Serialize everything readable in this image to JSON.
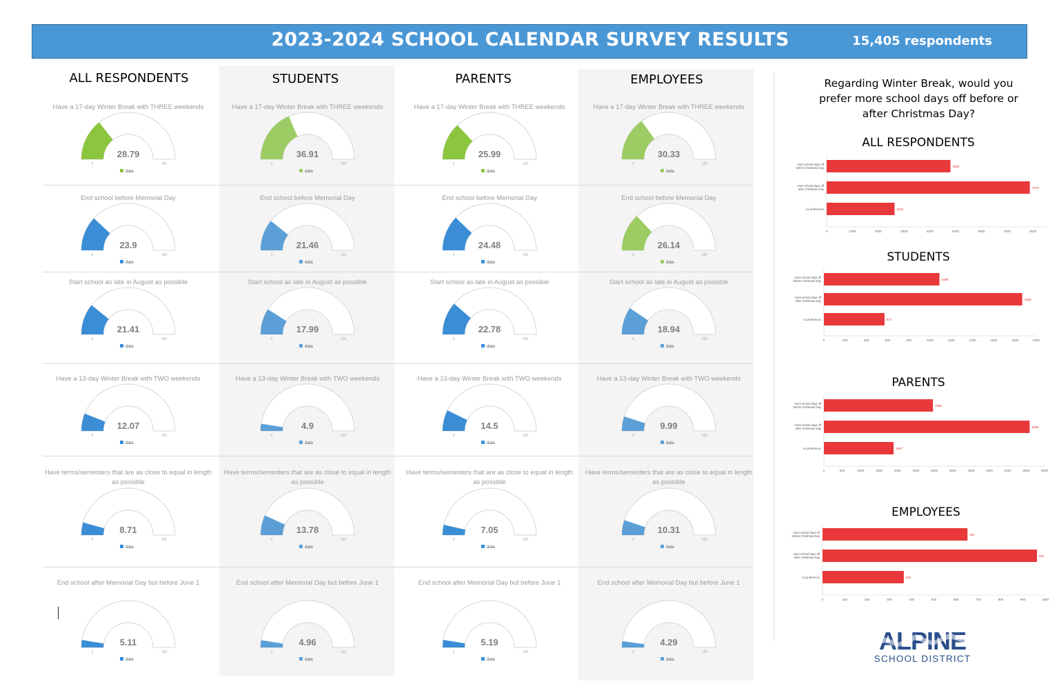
{
  "header": {
    "title": "2023-2024 SCHOOL CALENDAR SURVEY RESULTS",
    "respondents": "15,405 respondents"
  },
  "colors": {
    "header_bg": "#4a97d6",
    "gauge_green": "#8cc63f",
    "gauge_blue": "#3b8ed6",
    "bar_red": "#e8383a"
  },
  "gauge_axis": {
    "min": "0",
    "max": "100",
    "legend": "data"
  },
  "columns": [
    {
      "heading": "ALL RESPONDENTS",
      "gauges": [
        {
          "question": "Have a 17-day Winter Break with THREE weekends",
          "value": 28.79,
          "color": "#8cc63f"
        },
        {
          "question": "End school before Memorial Day",
          "value": 23.9,
          "color": "#3b8ed6"
        },
        {
          "question": "Start school as late in August as possible",
          "value": 21.41,
          "color": "#3b8ed6"
        },
        {
          "question": "Have a 13-day Winter Break with TWO weekends",
          "value": 12.07,
          "color": "#3b8ed6"
        },
        {
          "question": "Have terms/semesters that are as close to equal in length as possible",
          "value": 8.71,
          "color": "#3b8ed6"
        },
        {
          "question": "End school after Memorial Day but before June 1",
          "value": 5.11,
          "color": "#3b8ed6"
        }
      ]
    },
    {
      "heading": "STUDENTS",
      "gauges": [
        {
          "question": "Have a 17-day Winter Break with THREE weekends",
          "value": 36.91,
          "color": "#9ccc63"
        },
        {
          "question": "End school before Memorial Day",
          "value": 21.46,
          "color": "#5b9fd6"
        },
        {
          "question": "Start school as late in August as possible",
          "value": 17.99,
          "color": "#5b9fd6"
        },
        {
          "question": "Have a 13-day Winter Break with TWO weekends",
          "value": 4.9,
          "color": "#5b9fd6"
        },
        {
          "question": "Have terms/semesters that are as close to equal in length as possible",
          "value": 13.78,
          "color": "#5b9fd6"
        },
        {
          "question": "End school after Memorial Day but before June 1",
          "value": 4.96,
          "color": "#5b9fd6"
        }
      ]
    },
    {
      "heading": "PARENTS",
      "gauges": [
        {
          "question": "Have a 17-day Winter Break with THREE weekends",
          "value": 25.99,
          "color": "#8cc63f"
        },
        {
          "question": "End school before Memorial Day",
          "value": 24.48,
          "color": "#3b8ed6"
        },
        {
          "question": "Start school as late in August as possible",
          "value": 22.78,
          "color": "#3b8ed6"
        },
        {
          "question": "Have a 13-day Winter Break with TWO weekends",
          "value": 14.5,
          "color": "#3b8ed6"
        },
        {
          "question": "Have terms/semesters that are as close to equal in length as possible",
          "value": 7.05,
          "color": "#3b8ed6"
        },
        {
          "question": "End school after Memorial Day but before June 1",
          "value": 5.19,
          "color": "#3b8ed6"
        }
      ]
    },
    {
      "heading": "EMPLOYEES",
      "gauges": [
        {
          "question": "Have a 17-day Winter Break with THREE weekends",
          "value": 30.33,
          "color": "#9ccc63"
        },
        {
          "question": "End school before Memorial Day",
          "value": 26.14,
          "color": "#9ccc63"
        },
        {
          "question": "Start school as late in August as possible",
          "value": 18.94,
          "color": "#5b9fd6"
        },
        {
          "question": "Have a 13-day Winter Break with TWO weekends",
          "value": 9.99,
          "color": "#5b9fd6"
        },
        {
          "question": "Have terms/semesters that are as close to equal in length as possible",
          "value": 10.31,
          "color": "#5b9fd6"
        },
        {
          "question": "End school after Memorial Day but before June 1",
          "value": 4.29,
          "color": "#5b9fd6"
        }
      ]
    }
  ],
  "right_panel": {
    "question": "Regarding Winter Break, would you prefer more school days off before or after Christmas Day?"
  },
  "logo": {
    "name": "ALPINE",
    "subtitle": "SCHOOL DISTRICT"
  },
  "chart_data": [
    {
      "type": "gauge",
      "group": "ALL RESPONDENTS",
      "range": [
        0,
        100
      ],
      "categories": [
        "Have a 17-day Winter Break with THREE weekends",
        "End school before Memorial Day",
        "Start school as late in August as possible",
        "Have a 13-day Winter Break with TWO weekends",
        "Have terms/semesters that are as close to equal in length as possible",
        "End school after Memorial Day but before June 1"
      ],
      "values": [
        28.79,
        23.9,
        21.41,
        12.07,
        8.71,
        5.11
      ]
    },
    {
      "type": "gauge",
      "group": "STUDENTS",
      "range": [
        0,
        100
      ],
      "categories": [
        "Have a 17-day Winter Break with THREE weekends",
        "End school before Memorial Day",
        "Start school as late in August as possible",
        "Have a 13-day Winter Break with TWO weekends",
        "Have terms/semesters that are as close to equal in length as possible",
        "End school after Memorial Day but before June 1"
      ],
      "values": [
        36.91,
        21.46,
        17.99,
        4.9,
        13.78,
        4.96
      ]
    },
    {
      "type": "gauge",
      "group": "PARENTS",
      "range": [
        0,
        100
      ],
      "categories": [
        "Have a 17-day Winter Break with THREE weekends",
        "End school before Memorial Day",
        "Start school as late in August as possible",
        "Have a 13-day Winter Break with TWO weekends",
        "Have terms/semesters that are as close to equal in length as possible",
        "End school after Memorial Day but before June 1"
      ],
      "values": [
        25.99,
        24.48,
        22.78,
        14.5,
        7.05,
        5.19
      ]
    },
    {
      "type": "gauge",
      "group": "EMPLOYEES",
      "range": [
        0,
        100
      ],
      "categories": [
        "Have a 17-day Winter Break with THREE weekends",
        "End school before Memorial Day",
        "Start school as late in August as possible",
        "Have a 13-day Winter Break with TWO weekends",
        "Have terms/semesters that are as close to equal in length as possible",
        "End school after Memorial Day but before June 1"
      ],
      "values": [
        30.33,
        26.14,
        18.94,
        9.99,
        10.31,
        4.29
      ]
    },
    {
      "type": "bar",
      "orientation": "horizontal",
      "title": "ALL RESPONDENTS",
      "categories": [
        "more school days off before Christmas Day",
        "more school days off after Christmas Day",
        "no preference"
      ],
      "values": [
        4800,
        7876,
        2632
      ],
      "xticks": [
        "0",
        "1000",
        "2000",
        "3000",
        "4000",
        "5000",
        "6000",
        "7000",
        "8000"
      ],
      "xlim": [
        0,
        8500
      ]
    },
    {
      "type": "bar",
      "orientation": "horizontal",
      "title": "STUDENTS",
      "categories": [
        "more school days off before Christmas Day",
        "more school days off after Christmas Day",
        "no preference"
      ],
      "values": [
        1088,
        1868,
        571
      ],
      "xticks": [
        "0",
        "200",
        "400",
        "600",
        "800",
        "1000",
        "1200",
        "1400",
        "1600",
        "1800",
        "2000"
      ],
      "xlim": [
        0,
        2000
      ]
    },
    {
      "type": "bar",
      "orientation": "horizontal",
      "title": "PARENTS",
      "categories": [
        "more school days off before Christmas Day",
        "more school days off after Christmas Day",
        "no preference"
      ],
      "values": [
        2966,
        5596,
        1897
      ],
      "xticks": [
        "0",
        "500",
        "1000",
        "1500",
        "2000",
        "2500",
        "3000",
        "3500",
        "4000",
        "4500",
        "5000",
        "5500",
        "6000"
      ],
      "xlim": [
        0,
        6000
      ]
    },
    {
      "type": "bar",
      "orientation": "horizontal",
      "title": "EMPLOYEES",
      "categories": [
        "more school days off before Christmas Day",
        "more school days off after Christmas Day",
        "no preference"
      ],
      "values": [
        651,
        963,
        365
      ],
      "xticks": [
        "0",
        "100",
        "200",
        "300",
        "400",
        "500",
        "600",
        "700",
        "800",
        "900",
        "1000"
      ],
      "xlim": [
        0,
        1000
      ]
    }
  ]
}
